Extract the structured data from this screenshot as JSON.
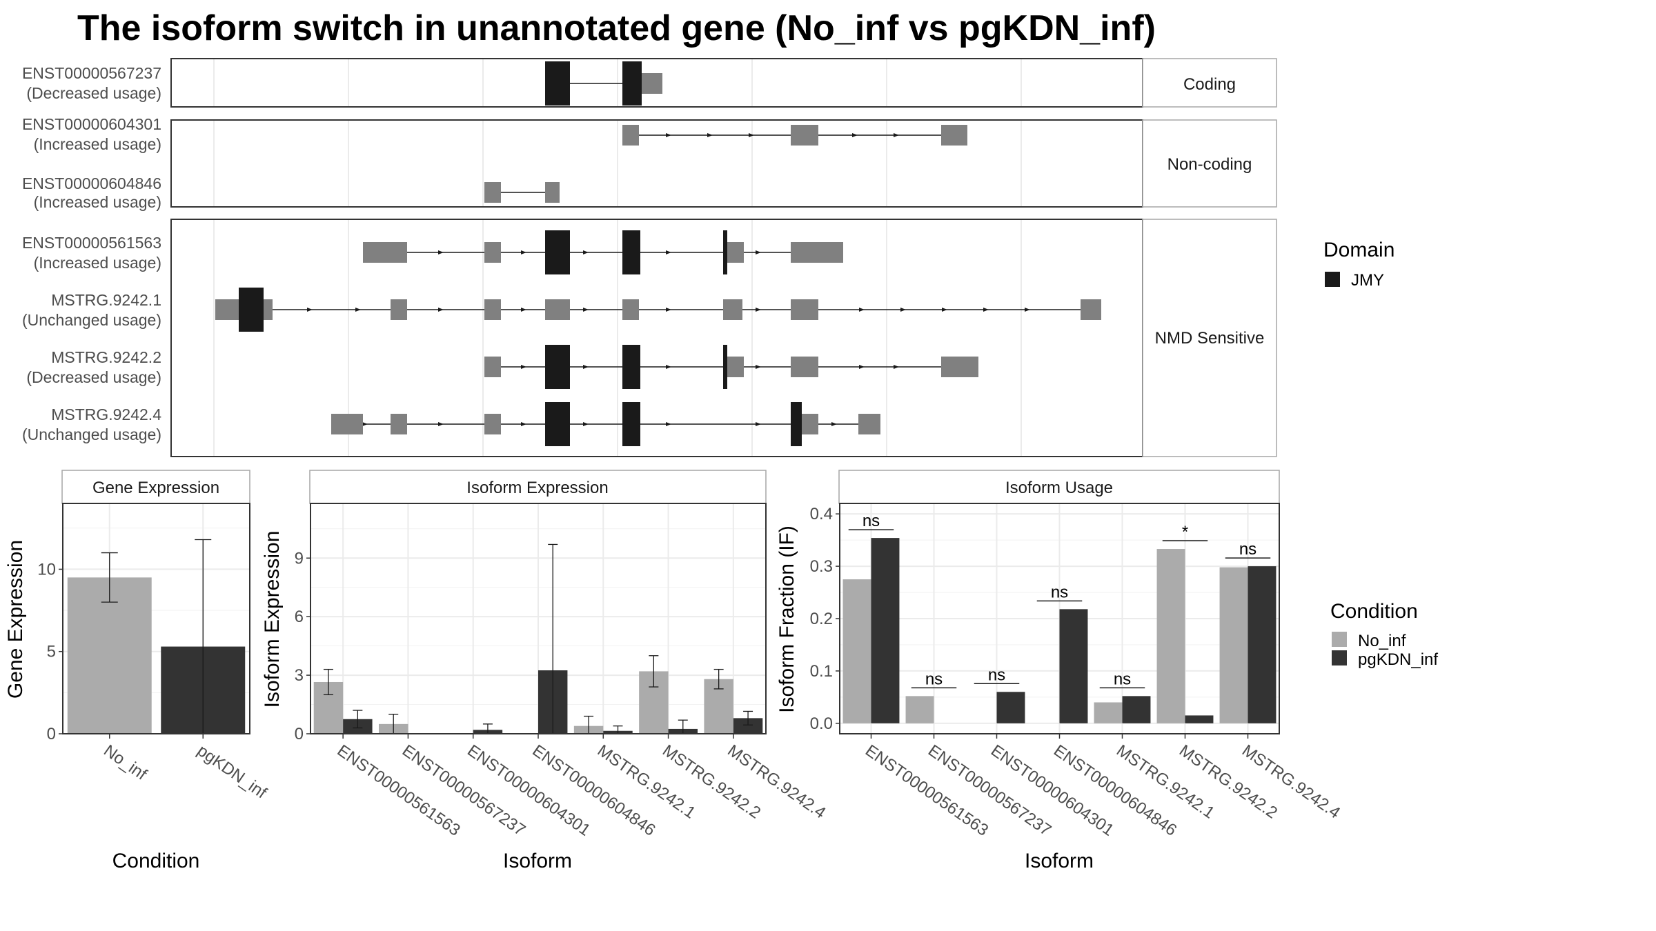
{
  "title": "The isoform switch in unannotated gene (No_inf vs pgKDN_inf)",
  "colors": {
    "exon_gray": "#808080",
    "domain": "#1a1a1a",
    "no_inf": "#ababab",
    "pgkdn_inf": "#333333",
    "grid": "#ebebeb",
    "strip_border": "#a6a6a6",
    "panel_border": "#333333"
  },
  "domain_legend": {
    "title": "Domain",
    "items": [
      {
        "label": "JMY",
        "color": "#1a1a1a"
      }
    ]
  },
  "condition_legend": {
    "title": "Condition",
    "items": [
      {
        "label": "No_inf",
        "color": "#ababab"
      },
      {
        "label": "pgKDN_inf",
        "color": "#333333"
      }
    ]
  },
  "structure": {
    "groups": [
      {
        "label": "Coding",
        "tracks": [
          {
            "name": "ENST00000567237",
            "usage": "(Decreased usage)"
          }
        ]
      },
      {
        "label": "Non-coding",
        "tracks": [
          {
            "name": "ENST00000604301",
            "usage": "(Increased usage)"
          },
          {
            "name": "ENST00000604846",
            "usage": "(Increased usage)"
          }
        ]
      },
      {
        "label": "NMD Sensitive",
        "tracks": [
          {
            "name": "ENST00000561563",
            "usage": "(Increased usage)"
          },
          {
            "name": "MSTRG.9242.1",
            "usage": "(Unchanged usage)"
          },
          {
            "name": "MSTRG.9242.2",
            "usage": "(Decreased usage)"
          },
          {
            "name": "MSTRG.9242.4",
            "usage": "(Unchanged usage)"
          }
        ]
      }
    ]
  },
  "chart_data": [
    {
      "type": "bar",
      "title": "Gene Expression",
      "xlabel": "Condition",
      "ylabel": "Gene Expression",
      "categories": [
        "No_inf",
        "pgKDN_inf"
      ],
      "values": [
        9.5,
        5.3
      ],
      "error_low": [
        8.0,
        0.0
      ],
      "error_high": [
        11.0,
        11.8
      ],
      "ylim": [
        0,
        14
      ],
      "yticks": [
        0,
        5,
        10
      ]
    },
    {
      "type": "bar",
      "title": "Isoform Expression",
      "xlabel": "Isoform",
      "ylabel": "Isoform Expression",
      "categories": [
        "ENST00000561563",
        "ENST00000567237",
        "ENST00000604301",
        "ENST00000604846",
        "MSTRG.9242.1",
        "MSTRG.9242.2",
        "MSTRG.9242.4"
      ],
      "series": [
        {
          "name": "No_inf",
          "values": [
            2.65,
            0.5,
            0.0,
            0.0,
            0.4,
            3.2,
            2.8
          ],
          "error_low": [
            2.0,
            0.0,
            0.0,
            0.0,
            0.0,
            2.4,
            2.3
          ],
          "error_high": [
            3.3,
            1.0,
            0.0,
            0.0,
            0.9,
            4.0,
            3.3
          ]
        },
        {
          "name": "pgKDN_inf",
          "values": [
            0.75,
            0.0,
            0.2,
            3.25,
            0.15,
            0.25,
            0.8
          ],
          "error_low": [
            0.3,
            0.0,
            0.0,
            0.0,
            0.0,
            0.0,
            0.45
          ],
          "error_high": [
            1.2,
            0.0,
            0.5,
            9.7,
            0.4,
            0.7,
            1.15
          ]
        }
      ],
      "ylim": [
        0,
        11.8
      ],
      "yticks": [
        0,
        3,
        6,
        9
      ]
    },
    {
      "type": "bar",
      "title": "Isoform Usage",
      "xlabel": "Isoform",
      "ylabel": "Isoform Fraction (IF)",
      "categories": [
        "ENST00000561563",
        "ENST00000567237",
        "ENST00000604301",
        "ENST00000604846",
        "MSTRG.9242.1",
        "MSTRG.9242.2",
        "MSTRG.9242.4"
      ],
      "series": [
        {
          "name": "No_inf",
          "values": [
            0.275,
            0.052,
            0.0,
            0.0,
            0.04,
            0.333,
            0.298
          ]
        },
        {
          "name": "pgKDN_inf",
          "values": [
            0.354,
            0.0,
            0.06,
            0.218,
            0.052,
            0.015,
            0.3
          ]
        }
      ],
      "significance": [
        "ns",
        "ns",
        "ns",
        "ns",
        "ns",
        "*",
        "ns"
      ],
      "ylim": [
        -0.02,
        0.42
      ],
      "yticks": [
        0.0,
        0.1,
        0.2,
        0.3,
        0.4
      ]
    }
  ]
}
